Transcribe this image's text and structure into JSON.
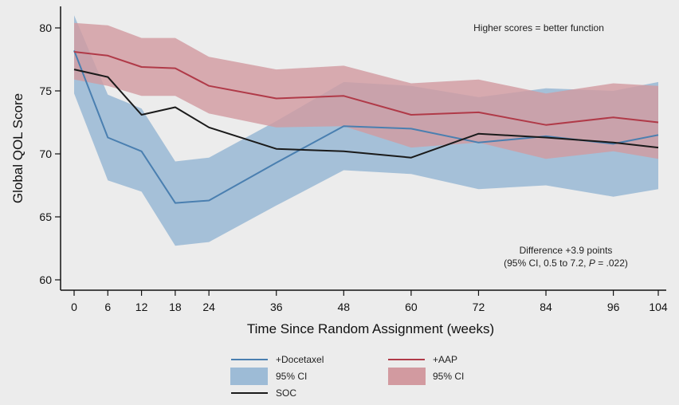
{
  "chart_data": {
    "type": "line",
    "xlabel": "Time Since Random Assignment (weeks)",
    "ylabel": "Global QOL Score",
    "x": [
      0,
      6,
      12,
      18,
      24,
      36,
      48,
      60,
      72,
      84,
      96,
      104
    ],
    "xlim": [
      -1,
      104
    ],
    "ylim": [
      59,
      82
    ],
    "yticks": [
      60,
      65,
      70,
      75,
      80
    ],
    "grid": false,
    "legend_position": "bottom",
    "series": [
      {
        "name": "+Docetaxel",
        "color": "#4a7fb0",
        "values": [
          78.2,
          71.3,
          70.2,
          66.1,
          66.3,
          69.3,
          72.2,
          72.0,
          70.9,
          71.4,
          70.8,
          71.5
        ],
        "ci_name": "95% CI",
        "ci_color": "#9dbbd6",
        "ci_lower": [
          74.8,
          67.9,
          67.0,
          62.7,
          63.0,
          65.9,
          68.7,
          68.4,
          67.2,
          67.5,
          66.6,
          67.2
        ],
        "ci_upper": [
          81.0,
          74.7,
          73.6,
          69.4,
          69.7,
          72.6,
          75.7,
          75.4,
          74.5,
          75.2,
          75.0,
          75.7
        ]
      },
      {
        "name": "+AAP",
        "color": "#b03a48",
        "values": [
          78.1,
          77.8,
          76.9,
          76.8,
          75.4,
          74.4,
          74.6,
          73.1,
          73.3,
          72.3,
          72.9,
          72.5
        ],
        "ci_name": "95% CI",
        "ci_color": "#d29aa0",
        "ci_lower": [
          75.9,
          75.4,
          74.6,
          74.6,
          73.2,
          72.1,
          72.2,
          70.5,
          70.9,
          69.6,
          70.2,
          69.6
        ],
        "ci_upper": [
          80.4,
          80.2,
          79.2,
          79.2,
          77.7,
          76.7,
          77.0,
          75.6,
          75.9,
          74.8,
          75.6,
          75.4
        ]
      },
      {
        "name": "SOC",
        "color": "#1a1a1a",
        "values": [
          76.7,
          76.1,
          73.1,
          73.7,
          72.1,
          70.4,
          70.2,
          69.7,
          71.6,
          71.3,
          70.9,
          70.5
        ]
      }
    ],
    "annotations": {
      "top_note": "Higher scores = better function",
      "diff_line1": "Difference +3.9 points",
      "diff_line2_prefix": "(95% CI, 0.5 to 7.2, ",
      "diff_line2_p": "P",
      "diff_line2_suffix": " = .022)"
    }
  }
}
